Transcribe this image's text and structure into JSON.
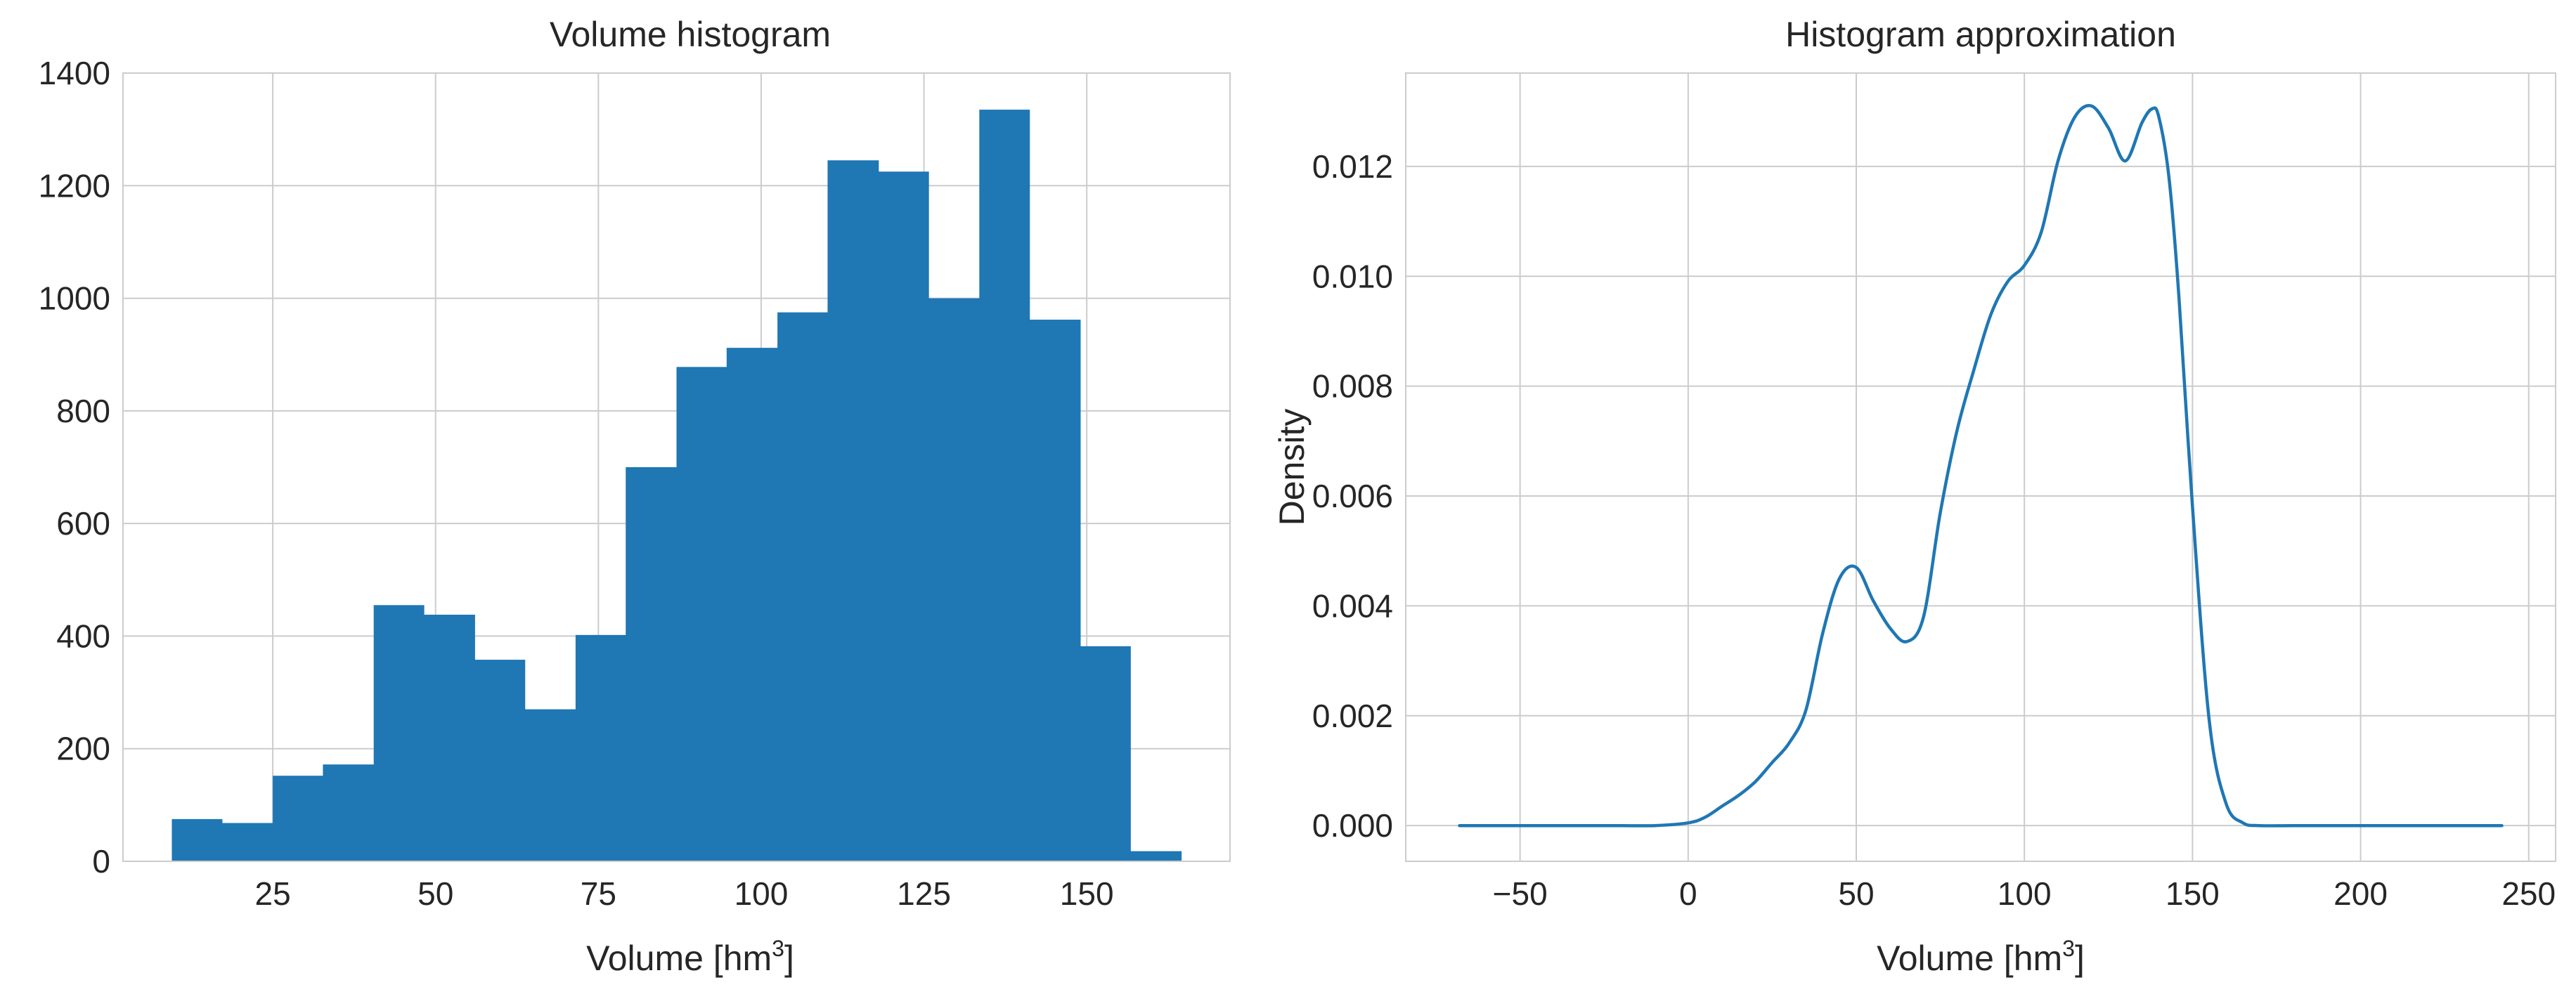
{
  "chart_data": [
    {
      "type": "bar",
      "title": "Volume histogram",
      "xlabel": "Volume [hm",
      "xlabel_sup": "3",
      "xlabel_end": "]",
      "ylabel": "",
      "xlim": [
        2,
        172
      ],
      "ylim": [
        0,
        1400
      ],
      "xticks": [
        25,
        50,
        75,
        100,
        125,
        150
      ],
      "yticks": [
        0,
        200,
        400,
        600,
        800,
        1000,
        1200,
        1400
      ],
      "grid": true,
      "bar_color": "#1f77b4",
      "bin_edges": [
        9.5,
        17.2,
        25.0,
        32.7,
        40.5,
        48.2,
        56.0,
        63.7,
        71.5,
        79.2,
        87.0,
        94.7,
        102.5,
        110.2,
        118.0,
        125.7,
        133.5,
        141.2,
        149.0,
        156.7,
        164.5
      ],
      "values": [
        75,
        68,
        152,
        172,
        455,
        438,
        358,
        270,
        402,
        700,
        878,
        912,
        975,
        1245,
        1225,
        1000,
        1335,
        962,
        382,
        18
      ]
    },
    {
      "type": "line",
      "title": "Histogram approximation",
      "xlabel": "Volume [hm",
      "xlabel_sup": "3",
      "xlabel_end": "]",
      "ylabel": "Density",
      "xlim": [
        -84,
        258
      ],
      "ylim": [
        -0.00065,
        0.0137
      ],
      "xticks": [
        -50,
        0,
        50,
        100,
        150,
        200,
        250
      ],
      "xtick_labels": [
        "−50",
        "0",
        "50",
        "100",
        "150",
        "200",
        "250"
      ],
      "yticks": [
        0.0,
        0.002,
        0.004,
        0.006,
        0.008,
        0.01,
        0.012
      ],
      "ytick_labels": [
        "0.000",
        "0.002",
        "0.004",
        "0.006",
        "0.008",
        "0.010",
        "0.012"
      ],
      "grid": true,
      "line_color": "#1f77b4",
      "x": [
        -68,
        -40,
        -20,
        -10,
        0,
        5,
        10,
        15,
        20,
        25,
        30,
        35,
        40,
        45,
        50,
        55,
        60,
        65,
        70,
        75,
        80,
        85,
        90,
        95,
        100,
        105,
        110,
        115,
        120,
        125,
        130,
        135,
        138,
        140,
        143,
        146,
        150,
        155,
        160,
        165,
        170,
        180,
        200,
        220,
        242
      ],
      "y": [
        0,
        0,
        0,
        0,
        5e-05,
        0.00015,
        0.00035,
        0.00055,
        0.0008,
        0.00115,
        0.0015,
        0.0021,
        0.0035,
        0.0045,
        0.0047,
        0.0041,
        0.0036,
        0.00335,
        0.0038,
        0.0057,
        0.0072,
        0.0083,
        0.0093,
        0.0099,
        0.0102,
        0.0108,
        0.0121,
        0.0129,
        0.0131,
        0.0127,
        0.0121,
        0.0128,
        0.01305,
        0.0129,
        0.0118,
        0.0096,
        0.0058,
        0.0019,
        0.0004,
        5e-05,
        0,
        0,
        0,
        0,
        0
      ]
    }
  ]
}
